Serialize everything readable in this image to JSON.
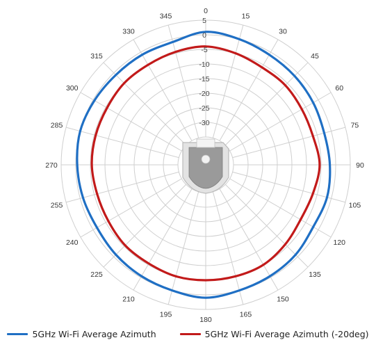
{
  "chart_data": {
    "type": "line",
    "subtype": "polar-radar",
    "title": "",
    "angle_labels": [
      "0",
      "15",
      "30",
      "45",
      "60",
      "75",
      "90",
      "105",
      "120",
      "135",
      "150",
      "165",
      "180",
      "195",
      "210",
      "225",
      "240",
      "255",
      "270",
      "285",
      "300",
      "315",
      "330",
      "345"
    ],
    "radial_tick_labels": [
      "5",
      "0",
      "-5",
      "-10",
      "-15",
      "-20",
      "-25",
      "-30"
    ],
    "radial_range": [
      -35,
      5
    ],
    "grid": true,
    "legend_position": "bottom",
    "series": [
      {
        "name": "5GHz Wi-Fi Average Azimuth",
        "color": "#1f6fc4",
        "angles": [
          0,
          15,
          30,
          45,
          60,
          75,
          90,
          105,
          120,
          135,
          150,
          165,
          180,
          195,
          210,
          225,
          240,
          255,
          270,
          285,
          300,
          315,
          330,
          345
        ],
        "values": [
          1,
          0,
          -1,
          -1.5,
          -2,
          -2.5,
          -2,
          -1.5,
          -2,
          -1,
          -0.5,
          0,
          1,
          0,
          -0.5,
          -1,
          -1.5,
          -1,
          -0.5,
          0,
          -0.5,
          -1,
          -1,
          -1
        ]
      },
      {
        "name": "5GHz Wi-Fi Average Azimuth (-20deg)",
        "color": "#c21a1a",
        "angles": [
          0,
          15,
          30,
          45,
          60,
          75,
          90,
          105,
          120,
          135,
          150,
          165,
          180,
          195,
          210,
          225,
          240,
          255,
          270,
          285,
          300,
          315,
          330,
          345
        ],
        "values": [
          -4,
          -5,
          -6,
          -6,
          -6.5,
          -6.5,
          -5.5,
          -6.5,
          -7,
          -6,
          -5,
          -5,
          -5,
          -5,
          -5.5,
          -5.5,
          -6,
          -6,
          -5.5,
          -5.5,
          -5.5,
          -5,
          -5,
          -4.5
        ]
      }
    ]
  },
  "device_image": {
    "icon": "antenna-device-image"
  }
}
